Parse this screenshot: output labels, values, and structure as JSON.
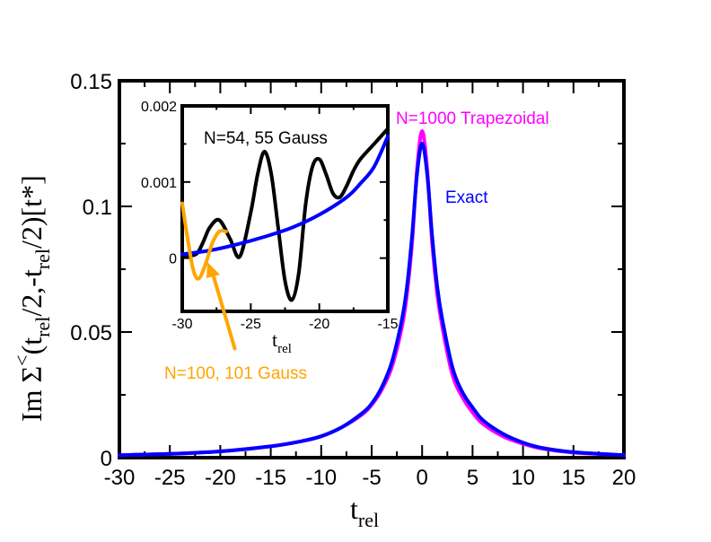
{
  "chart_data": [
    {
      "type": "line",
      "role": "main",
      "xlabel": "t",
      "xlabel_sub": "rel",
      "ylabel_parts": [
        "Im ",
        "Σ",
        "<",
        "(t",
        "rel",
        "/2,-t",
        "rel",
        "/2)[t*]"
      ],
      "xlim": [
        -30,
        20
      ],
      "ylim": [
        0,
        0.15
      ],
      "xticks": [
        -30,
        -25,
        -20,
        -15,
        -10,
        -5,
        0,
        5,
        10,
        15,
        20
      ],
      "xtick_labels": [
        "-30",
        "-25",
        "-20",
        "-15",
        "-10",
        "-5",
        "0",
        "5",
        "10",
        "15",
        "20"
      ],
      "yticks": [
        0,
        0.05,
        0.1,
        0.15
      ],
      "ytick_labels": [
        "0",
        "0.05",
        "0.1",
        "0.15"
      ],
      "series": [
        {
          "name": "N=1000 Trapezoidal",
          "color": "#ff00ff",
          "x": [
            -30,
            -25,
            -20,
            -15,
            -12,
            -10,
            -8,
            -6,
            -5,
            -4,
            -3,
            -2,
            -1.5,
            -1,
            -0.5,
            0,
            0.5,
            1,
            1.5,
            2,
            3,
            4,
            5,
            6,
            8,
            10,
            12,
            15,
            20
          ],
          "y": [
            0.001,
            0.0015,
            0.0025,
            0.0045,
            0.0065,
            0.0085,
            0.012,
            0.017,
            0.021,
            0.027,
            0.036,
            0.052,
            0.065,
            0.085,
            0.115,
            0.13,
            0.115,
            0.085,
            0.065,
            0.052,
            0.033,
            0.024,
            0.018,
            0.0135,
            0.0085,
            0.0055,
            0.0035,
            0.002,
            0.001
          ]
        },
        {
          "name": "Exact",
          "color": "#0000ff",
          "x": [
            -30,
            -25,
            -20,
            -15,
            -12,
            -10,
            -8,
            -6,
            -5,
            -4,
            -3,
            -2,
            -1.5,
            -1,
            -0.5,
            0,
            0.5,
            1,
            1.5,
            2,
            3,
            4,
            5,
            6,
            8,
            10,
            12,
            15,
            20
          ],
          "y": [
            0.001,
            0.0015,
            0.0025,
            0.0045,
            0.0065,
            0.0085,
            0.012,
            0.0175,
            0.0215,
            0.028,
            0.038,
            0.055,
            0.068,
            0.088,
            0.113,
            0.125,
            0.113,
            0.088,
            0.068,
            0.055,
            0.036,
            0.026,
            0.02,
            0.015,
            0.0095,
            0.006,
            0.0038,
            0.0022,
            0.001
          ]
        }
      ],
      "annotations": [
        {
          "text": "N=1000 Trapezoidal",
          "color": "#ff00ff"
        },
        {
          "text": "Exact",
          "color": "#0000ff"
        },
        {
          "text": "N=100, 101 Gauss",
          "color": "#ffa500"
        }
      ]
    },
    {
      "type": "line",
      "role": "inset",
      "xlabel": "t",
      "xlabel_sub": "rel",
      "xlim": [
        -30,
        -15
      ],
      "ylim": [
        -0.0007,
        0.002
      ],
      "xticks": [
        -30,
        -25,
        -20,
        -15
      ],
      "xtick_labels": [
        "-30",
        "-25",
        "-20",
        "-15"
      ],
      "yticks": [
        0,
        0.001,
        0.002
      ],
      "ytick_labels": [
        "0",
        "0.001",
        "0.002"
      ],
      "series": [
        {
          "name": "N=54, 55 Gauss",
          "color": "#000000",
          "x": [
            -30,
            -29,
            -28.5,
            -28,
            -27.3,
            -26.5,
            -25.8,
            -25,
            -24.5,
            -24,
            -23.5,
            -23,
            -22.5,
            -22,
            -21.5,
            -21,
            -20.5,
            -20,
            -19.5,
            -19,
            -18.5,
            -18,
            -17.5,
            -17,
            -16,
            -15
          ],
          "y": [
            2e-05,
            5e-05,
            0.0002,
            0.0004,
            0.0005,
            0.00025,
            2e-05,
            0.0006,
            0.0011,
            0.0014,
            0.0011,
            0.0004,
            -0.0003,
            -0.00055,
            -0.0002,
            0.0007,
            0.0012,
            0.0013,
            0.0011,
            0.00085,
            0.0008,
            0.00095,
            0.00115,
            0.0013,
            0.0015,
            0.0017
          ]
        },
        {
          "name": "Exact",
          "color": "#0000ff",
          "x": [
            -30,
            -28,
            -26,
            -24,
            -22,
            -20,
            -18,
            -17,
            -16,
            -15
          ],
          "y": [
            5e-05,
            0.0001,
            0.00018,
            0.00028,
            0.0004,
            0.00057,
            0.0008,
            0.00098,
            0.0012,
            0.0016
          ]
        },
        {
          "name": "N=100, 101 Gauss",
          "color": "#ffa500",
          "x": [
            -30,
            -29.6,
            -29.2,
            -28.8,
            -28.3,
            -27.8,
            -27.3,
            -26.8
          ],
          "y": [
            0.00072,
            0.00025,
            -0.00015,
            -0.00027,
            -8e-05,
            0.0002,
            0.00035,
            0.00035
          ]
        }
      ],
      "annotations": [
        {
          "text": "N=54, 55 Gauss",
          "color": "#000000"
        }
      ]
    }
  ]
}
